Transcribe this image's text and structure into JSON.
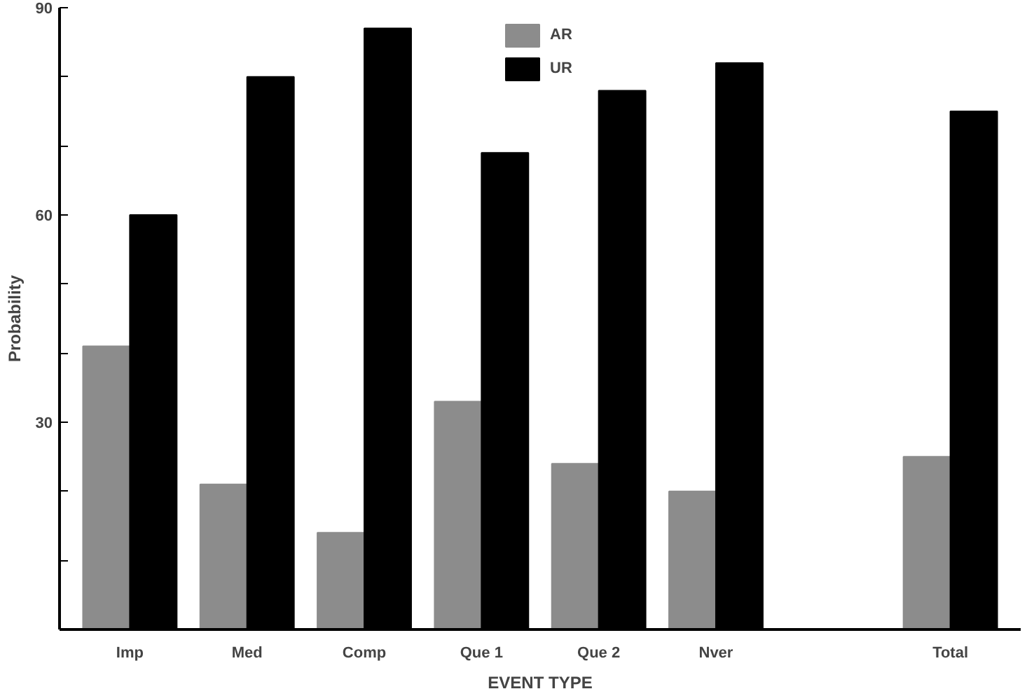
{
  "chart_data": {
    "type": "bar",
    "xlabel": "EVENT TYPE",
    "ylabel": "Probability",
    "categories": [
      "Imp",
      "Med",
      "Comp",
      "Que 1",
      "Que 2",
      "Nver",
      null,
      "Total"
    ],
    "series": [
      {
        "name": "AR",
        "color": "#8c8c8c",
        "values": [
          41,
          21,
          14,
          33,
          24,
          20,
          null,
          25
        ]
      },
      {
        "name": "UR",
        "color": "#000000",
        "values": [
          60,
          80,
          87,
          69,
          78,
          82,
          null,
          75
        ]
      }
    ],
    "ylim": [
      0,
      90
    ],
    "yticks": [
      {
        "value": 10,
        "label": null
      },
      {
        "value": 20,
        "label": null
      },
      30,
      {
        "value": 40,
        "label": null
      },
      {
        "value": 50,
        "label": null
      },
      60,
      {
        "value": 70,
        "label": null
      },
      {
        "value": 80,
        "label": null
      },
      90
    ],
    "grid": false,
    "legend": "top"
  }
}
